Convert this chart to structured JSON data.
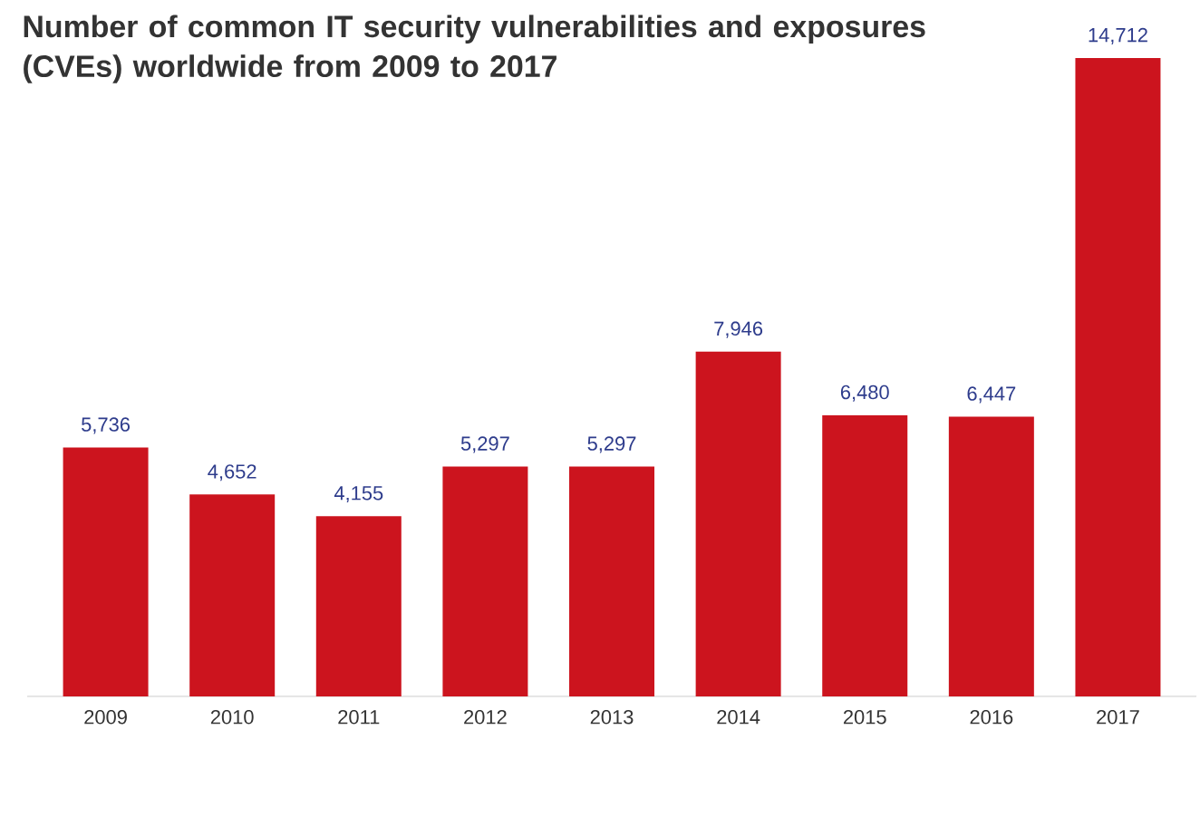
{
  "chart_data": {
    "type": "bar",
    "title": "Number of common IT security vulnerabilities and exposures (CVEs) worldwide from 2009 to 2017",
    "categories": [
      "2009",
      "2010",
      "2011",
      "2012",
      "2013",
      "2014",
      "2015",
      "2016",
      "2017"
    ],
    "values": [
      5736,
      4652,
      4155,
      5297,
      5297,
      7946,
      6480,
      6447,
      14712
    ],
    "value_labels": [
      "5,736",
      "4,652",
      "4,155",
      "5,297",
      "5,297",
      "7,946",
      "6,480",
      "6,447",
      "14,712"
    ],
    "color": "#cc141e"
  }
}
